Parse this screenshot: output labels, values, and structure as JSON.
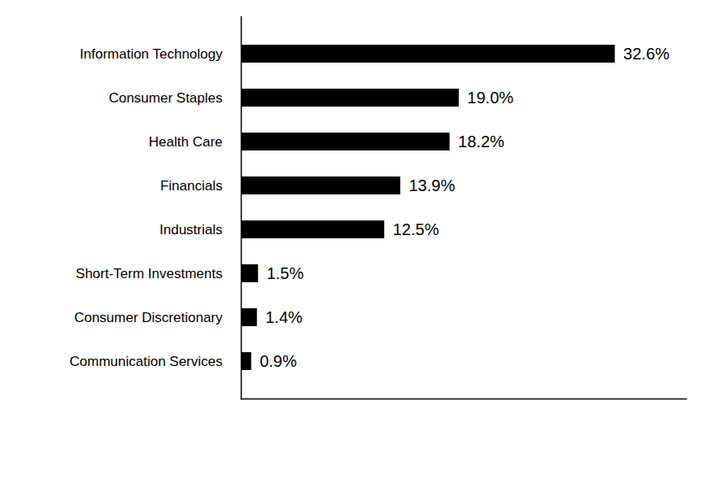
{
  "chart_data": {
    "type": "bar",
    "orientation": "horizontal",
    "categories": [
      "Information Technology",
      "Consumer Staples",
      "Health Care",
      "Financials",
      "Industrials",
      "Short-Term Investments",
      "Consumer Discretionary",
      "Communication Services"
    ],
    "values": [
      32.6,
      19.0,
      18.2,
      13.9,
      12.5,
      1.5,
      1.4,
      0.9
    ],
    "value_labels": [
      "32.6%",
      "19.0%",
      "18.2%",
      "13.9%",
      "12.5%",
      "1.5%",
      "1.4%",
      "0.9%"
    ],
    "color": "#000000",
    "xlim": [
      0,
      38.8
    ],
    "xticks": [],
    "grid": false,
    "data_labels": true,
    "tick_labels": "y"
  }
}
